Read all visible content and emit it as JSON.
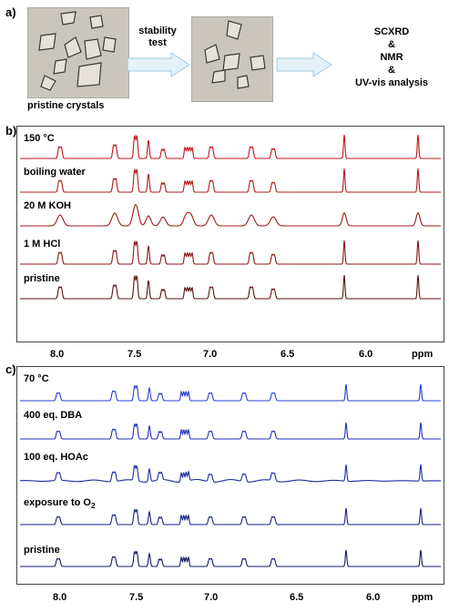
{
  "panel_a": {
    "label": "a)",
    "pristine_caption": "pristine crystals",
    "arrow1_lines": [
      "stability",
      "test"
    ],
    "analysis_lines": [
      "SCXRD",
      "&",
      "NMR",
      "&",
      "UV-vis analysis"
    ],
    "colors": {
      "arrow_fill": "#e3f1f8",
      "arrow_stroke": "#9ccbe0"
    }
  },
  "panel_b": {
    "label": "b)",
    "traces": [
      {
        "label": "150 °C",
        "color": "#c0141a"
      },
      {
        "label": "boiling water",
        "color": "#b01a1a"
      },
      {
        "label": "20 M KOH",
        "color": "#a01818"
      },
      {
        "label": "1 M HCl",
        "color": "#8a1616"
      },
      {
        "label": "pristine",
        "color": "#5a1212"
      }
    ],
    "ticks": [
      "8.0",
      "7.5",
      "7.0",
      "6.5",
      "6.0"
    ],
    "unit": "ppm"
  },
  "panel_c": {
    "label": "c)",
    "traces": [
      {
        "label": "70 °C",
        "color": "#2a3fd0"
      },
      {
        "label": "400 eq. DBA",
        "color": "#2030b8"
      },
      {
        "label": "100 eq. HOAc",
        "color": "#1a2aa0"
      },
      {
        "label": "exposure to O",
        "sub": "2",
        "color": "#1a2288"
      },
      {
        "label": "pristine",
        "color": "#141a66"
      }
    ],
    "ticks": [
      "8.0",
      "7.5",
      "7.0",
      "6.5",
      "6.0"
    ],
    "unit": "ppm"
  }
}
